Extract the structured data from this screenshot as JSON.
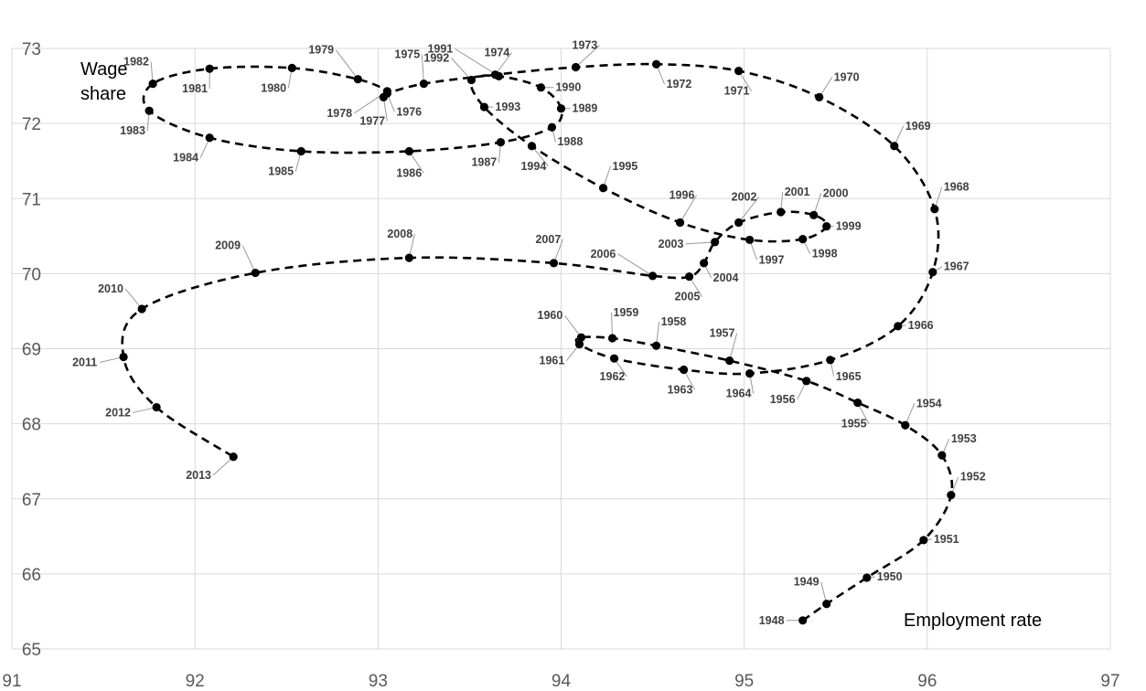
{
  "chart_data": {
    "type": "scatter",
    "xlabel": "Employment rate",
    "ylabel": "Wage share",
    "xlim": [
      91,
      97
    ],
    "ylim": [
      65,
      73
    ],
    "xticks": [
      "91",
      "92",
      "93",
      "94",
      "95",
      "96",
      "97"
    ],
    "yticks": [
      "65",
      "66",
      "67",
      "68",
      "69",
      "70",
      "71",
      "72",
      "73"
    ],
    "grid": true,
    "connected": true,
    "line_style": "dashed",
    "point_color": "#000000",
    "line_color": "#000000",
    "points": [
      {
        "label": "1948",
        "x": 95.32,
        "y": 65.38
      },
      {
        "label": "1949",
        "x": 95.45,
        "y": 65.6
      },
      {
        "label": "1950",
        "x": 95.67,
        "y": 65.95
      },
      {
        "label": "1951",
        "x": 95.98,
        "y": 66.45
      },
      {
        "label": "1952",
        "x": 96.13,
        "y": 67.05
      },
      {
        "label": "1953",
        "x": 96.08,
        "y": 67.58
      },
      {
        "label": "1954",
        "x": 95.88,
        "y": 67.98
      },
      {
        "label": "1955",
        "x": 95.62,
        "y": 68.28
      },
      {
        "label": "1956",
        "x": 95.34,
        "y": 68.57
      },
      {
        "label": "1957",
        "x": 94.92,
        "y": 68.84
      },
      {
        "label": "1958",
        "x": 94.52,
        "y": 69.04
      },
      {
        "label": "1959",
        "x": 94.28,
        "y": 69.14
      },
      {
        "label": "1960",
        "x": 94.11,
        "y": 69.15
      },
      {
        "label": "1961",
        "x": 94.1,
        "y": 69.06
      },
      {
        "label": "1962",
        "x": 94.29,
        "y": 68.87
      },
      {
        "label": "1963",
        "x": 94.67,
        "y": 68.72
      },
      {
        "label": "1964",
        "x": 95.03,
        "y": 68.67
      },
      {
        "label": "1965",
        "x": 95.47,
        "y": 68.85
      },
      {
        "label": "1966",
        "x": 95.84,
        "y": 69.3
      },
      {
        "label": "1967",
        "x": 96.03,
        "y": 70.02
      },
      {
        "label": "1968",
        "x": 96.04,
        "y": 70.86
      },
      {
        "label": "1969",
        "x": 95.82,
        "y": 71.7
      },
      {
        "label": "1970",
        "x": 95.41,
        "y": 72.35
      },
      {
        "label": "1971",
        "x": 94.97,
        "y": 72.7
      },
      {
        "label": "1972",
        "x": 94.52,
        "y": 72.79
      },
      {
        "label": "1973",
        "x": 94.08,
        "y": 72.75
      },
      {
        "label": "1974",
        "x": 93.64,
        "y": 72.65
      },
      {
        "label": "1975",
        "x": 93.25,
        "y": 72.53
      },
      {
        "label": "1976",
        "x": 93.05,
        "y": 72.4
      },
      {
        "label": "1977",
        "x": 93.03,
        "y": 72.35
      },
      {
        "label": "1978",
        "x": 93.05,
        "y": 72.43
      },
      {
        "label": "1979",
        "x": 92.89,
        "y": 72.59
      },
      {
        "label": "1980",
        "x": 92.53,
        "y": 72.74
      },
      {
        "label": "1981",
        "x": 92.08,
        "y": 72.73
      },
      {
        "label": "1982",
        "x": 91.77,
        "y": 72.53
      },
      {
        "label": "1983",
        "x": 91.75,
        "y": 72.17
      },
      {
        "label": "1984",
        "x": 92.08,
        "y": 71.81
      },
      {
        "label": "1985",
        "x": 92.58,
        "y": 71.63
      },
      {
        "label": "1986",
        "x": 93.17,
        "y": 71.63
      },
      {
        "label": "1987",
        "x": 93.67,
        "y": 71.75
      },
      {
        "label": "1988",
        "x": 93.95,
        "y": 71.95
      },
      {
        "label": "1989",
        "x": 94.0,
        "y": 72.2
      },
      {
        "label": "1990",
        "x": 93.89,
        "y": 72.48
      },
      {
        "label": "1991",
        "x": 93.66,
        "y": 72.63
      },
      {
        "label": "1992",
        "x": 93.51,
        "y": 72.58
      },
      {
        "label": "1993",
        "x": 93.58,
        "y": 72.22
      },
      {
        "label": "1994",
        "x": 93.84,
        "y": 71.7
      },
      {
        "label": "1995",
        "x": 94.23,
        "y": 71.14
      },
      {
        "label": "1996",
        "x": 94.65,
        "y": 70.68
      },
      {
        "label": "1997",
        "x": 95.03,
        "y": 70.45
      },
      {
        "label": "1998",
        "x": 95.32,
        "y": 70.46
      },
      {
        "label": "1999",
        "x": 95.45,
        "y": 70.63
      },
      {
        "label": "2000",
        "x": 95.38,
        "y": 70.78
      },
      {
        "label": "2001",
        "x": 95.2,
        "y": 70.82
      },
      {
        "label": "2002",
        "x": 94.97,
        "y": 70.68
      },
      {
        "label": "2003",
        "x": 94.84,
        "y": 70.42
      },
      {
        "label": "2004",
        "x": 94.78,
        "y": 70.14
      },
      {
        "label": "2005",
        "x": 94.7,
        "y": 69.96
      },
      {
        "label": "2006",
        "x": 94.5,
        "y": 69.97
      },
      {
        "label": "2007",
        "x": 93.96,
        "y": 70.14
      },
      {
        "label": "2008",
        "x": 93.17,
        "y": 70.21
      },
      {
        "label": "2009",
        "x": 92.33,
        "y": 70.01
      },
      {
        "label": "2010",
        "x": 91.71,
        "y": 69.53
      },
      {
        "label": "2011",
        "x": 91.61,
        "y": 68.89
      },
      {
        "label": "2012",
        "x": 91.79,
        "y": 68.22
      },
      {
        "label": "2013",
        "x": 92.21,
        "y": 67.56
      }
    ]
  }
}
